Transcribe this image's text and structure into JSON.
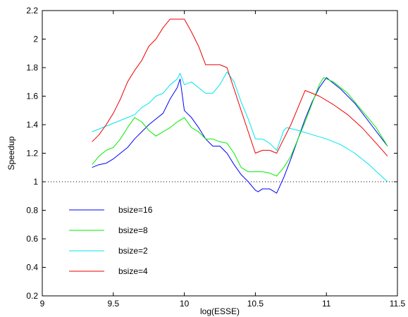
{
  "chart_data": {
    "type": "line",
    "title": "",
    "xlabel": "log(ESSE)",
    "ylabel": "Speedup",
    "xlim": [
      9,
      11.5
    ],
    "ylim": [
      0.2,
      2.2
    ],
    "xticks": [
      9,
      9.5,
      10,
      10.5,
      11,
      11.5
    ],
    "xtick_labels": [
      "9",
      "9.5",
      "10",
      "10.5",
      "11",
      "11.5"
    ],
    "yticks": [
      0.2,
      0.4,
      0.6,
      0.8,
      1,
      1.2,
      1.4,
      1.6,
      1.8,
      2,
      2.2
    ],
    "ytick_labels": [
      "0.2",
      "0.4",
      "0.6",
      "0.8",
      "1",
      "1.2",
      "1.4",
      "1.6",
      "1.8",
      "2",
      "2.2"
    ],
    "grid": false,
    "legend_position": "bottom-left",
    "reference_line": {
      "y": 1,
      "style": "dotted",
      "color": "#000000"
    },
    "series": [
      {
        "name": "bsize=16",
        "color": "#0000ff",
        "x": [
          9.35,
          9.4,
          9.45,
          9.5,
          9.55,
          9.6,
          9.65,
          9.7,
          9.75,
          9.8,
          9.85,
          9.9,
          9.95,
          9.97,
          10.0,
          10.05,
          10.1,
          10.15,
          10.2,
          10.25,
          10.3,
          10.35,
          10.4,
          10.45,
          10.5,
          10.52,
          10.55,
          10.6,
          10.65,
          10.7,
          10.75,
          10.8,
          10.85,
          10.9,
          10.95,
          11.0,
          11.1,
          11.2,
          11.3,
          11.43
        ],
        "y": [
          1.1,
          1.12,
          1.13,
          1.16,
          1.2,
          1.24,
          1.3,
          1.35,
          1.4,
          1.44,
          1.48,
          1.58,
          1.66,
          1.72,
          1.5,
          1.45,
          1.38,
          1.3,
          1.25,
          1.25,
          1.2,
          1.12,
          1.05,
          1.0,
          0.94,
          0.93,
          0.95,
          0.95,
          0.92,
          1.03,
          1.16,
          1.3,
          1.44,
          1.56,
          1.66,
          1.73,
          1.65,
          1.55,
          1.42,
          1.25
        ]
      },
      {
        "name": "bsize=8",
        "color": "#00ee00",
        "x": [
          9.35,
          9.4,
          9.45,
          9.5,
          9.55,
          9.6,
          9.65,
          9.7,
          9.75,
          9.8,
          9.85,
          9.9,
          9.95,
          10.0,
          10.05,
          10.1,
          10.15,
          10.2,
          10.25,
          10.3,
          10.35,
          10.4,
          10.45,
          10.5,
          10.55,
          10.6,
          10.65,
          10.7,
          10.75,
          10.8,
          10.85,
          10.9,
          10.95,
          10.98,
          11.05,
          11.15,
          11.25,
          11.35,
          11.43
        ],
        "y": [
          1.12,
          1.18,
          1.22,
          1.24,
          1.3,
          1.38,
          1.45,
          1.42,
          1.36,
          1.32,
          1.35,
          1.38,
          1.42,
          1.45,
          1.38,
          1.35,
          1.3,
          1.3,
          1.28,
          1.27,
          1.2,
          1.1,
          1.07,
          1.07,
          1.07,
          1.06,
          1.04,
          1.1,
          1.18,
          1.3,
          1.42,
          1.55,
          1.68,
          1.73,
          1.7,
          1.62,
          1.5,
          1.38,
          1.25
        ]
      },
      {
        "name": "bsize=2",
        "color": "#00e5ee",
        "x": [
          9.35,
          9.4,
          9.45,
          9.5,
          9.55,
          9.6,
          9.65,
          9.7,
          9.75,
          9.8,
          9.85,
          9.9,
          9.95,
          9.97,
          10.0,
          10.05,
          10.1,
          10.15,
          10.2,
          10.25,
          10.3,
          10.35,
          10.4,
          10.45,
          10.5,
          10.55,
          10.6,
          10.65,
          10.7,
          10.72,
          10.8,
          10.9,
          11.0,
          11.1,
          11.2,
          11.3,
          11.43
        ],
        "y": [
          1.35,
          1.37,
          1.39,
          1.41,
          1.43,
          1.45,
          1.47,
          1.52,
          1.55,
          1.6,
          1.62,
          1.68,
          1.72,
          1.76,
          1.68,
          1.7,
          1.66,
          1.62,
          1.62,
          1.68,
          1.77,
          1.7,
          1.56,
          1.44,
          1.3,
          1.3,
          1.27,
          1.22,
          1.36,
          1.38,
          1.36,
          1.33,
          1.3,
          1.26,
          1.2,
          1.12,
          1.0
        ]
      },
      {
        "name": "bsize=4",
        "color": "#ee0000",
        "x": [
          9.35,
          9.4,
          9.45,
          9.5,
          9.55,
          9.6,
          9.65,
          9.7,
          9.75,
          9.8,
          9.85,
          9.9,
          9.95,
          10.0,
          10.05,
          10.1,
          10.15,
          10.2,
          10.25,
          10.3,
          10.35,
          10.4,
          10.45,
          10.5,
          10.55,
          10.6,
          10.65,
          10.7,
          10.75,
          10.8,
          10.85,
          10.95,
          11.05,
          11.15,
          11.25,
          11.35,
          11.43
        ],
        "y": [
          1.28,
          1.33,
          1.4,
          1.48,
          1.58,
          1.7,
          1.78,
          1.85,
          1.95,
          2.0,
          2.08,
          2.14,
          2.14,
          2.14,
          2.05,
          1.95,
          1.82,
          1.82,
          1.82,
          1.8,
          1.65,
          1.5,
          1.35,
          1.2,
          1.22,
          1.22,
          1.2,
          1.3,
          1.4,
          1.52,
          1.64,
          1.6,
          1.54,
          1.47,
          1.38,
          1.27,
          1.18
        ]
      }
    ]
  }
}
